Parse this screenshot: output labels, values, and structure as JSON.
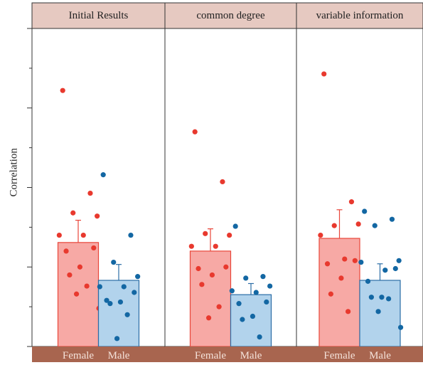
{
  "chart_data": {
    "type": "bar",
    "ylabel": "Correlation",
    "ylim": [
      0,
      1
    ],
    "y_ticks_major": [
      0,
      0.25,
      0.5,
      0.75,
      1.0
    ],
    "y_ticks_minor": [
      0.125,
      0.375,
      0.625,
      0.875
    ],
    "y_tick_labels_visible": false,
    "grid": false,
    "legend": "none",
    "categories": [
      "Female",
      "Male"
    ],
    "colors": {
      "female_fill": "#f7a9a5",
      "female_edge": "#e8463a",
      "female_point": "#e8392e",
      "male_fill": "#b2d3ec",
      "male_edge": "#2b6da6",
      "male_point": "#1367a3",
      "strip_fill": "#e6c9c1",
      "base_fill": "#a8654f",
      "base_text": "#f4e2da"
    },
    "panels": [
      {
        "title": "Initial Results",
        "bars": [
          {
            "group": "Female",
            "mean": 0.327,
            "err_upper": 0.397,
            "points": [
              0.805,
              0.482,
              0.42,
              0.41,
              0.35,
              0.35,
              0.31,
              0.3,
              0.25,
              0.225,
              0.19,
              0.165,
              0.12
            ]
          },
          {
            "group": "Male",
            "mean": 0.208,
            "err_upper": 0.258,
            "points": [
              0.54,
              0.35,
              0.265,
              0.22,
              0.188,
              0.188,
              0.17,
              0.145,
              0.14,
              0.135,
              0.1,
              0.025
            ]
          }
        ]
      },
      {
        "title": "common degree",
        "bars": [
          {
            "group": "Female",
            "mean": 0.3,
            "err_upper": 0.37,
            "points": [
              0.675,
              0.518,
              0.355,
              0.35,
              0.315,
              0.315,
              0.25,
              0.245,
              0.225,
              0.195,
              0.125,
              0.09
            ]
          },
          {
            "group": "Male",
            "mean": 0.163,
            "err_upper": 0.198,
            "points": [
              0.378,
              0.22,
              0.215,
              0.19,
              0.175,
              0.17,
              0.14,
              0.135,
              0.095,
              0.085,
              0.03
            ]
          }
        ]
      },
      {
        "title": "variable information",
        "bars": [
          {
            "group": "Female",
            "mean": 0.34,
            "err_upper": 0.43,
            "points": [
              0.857,
              0.455,
              0.38,
              0.385,
              0.35,
              0.275,
              0.27,
              0.26,
              0.215,
              0.165,
              0.11
            ]
          },
          {
            "group": "Male",
            "mean": 0.208,
            "err_upper": 0.26,
            "points": [
              0.425,
              0.4,
              0.38,
              0.27,
              0.265,
              0.24,
              0.245,
              0.205,
              0.155,
              0.155,
              0.15,
              0.11,
              0.06
            ]
          }
        ]
      }
    ]
  }
}
